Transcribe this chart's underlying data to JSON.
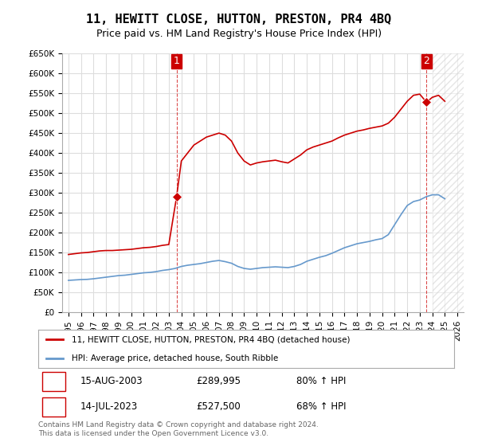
{
  "title": "11, HEWITT CLOSE, HUTTON, PRESTON, PR4 4BQ",
  "subtitle": "Price paid vs. HM Land Registry's House Price Index (HPI)",
  "xlabel": "",
  "ylabel": "",
  "ylim": [
    0,
    650000
  ],
  "xlim_left": 1995.0,
  "xlim_right": 2026.5,
  "yticks": [
    0,
    50000,
    100000,
    150000,
    200000,
    250000,
    300000,
    350000,
    400000,
    450000,
    500000,
    550000,
    600000,
    650000
  ],
  "ytick_labels": [
    "£0",
    "£50K",
    "£100K",
    "£150K",
    "£200K",
    "£250K",
    "£300K",
    "£350K",
    "£400K",
    "£450K",
    "£500K",
    "£550K",
    "£600K",
    "£650K"
  ],
  "xticks": [
    1995,
    1996,
    1997,
    1998,
    1999,
    2000,
    2001,
    2002,
    2003,
    2004,
    2005,
    2006,
    2007,
    2008,
    2009,
    2010,
    2011,
    2012,
    2013,
    2014,
    2015,
    2016,
    2017,
    2018,
    2019,
    2020,
    2021,
    2022,
    2023,
    2024,
    2025,
    2026
  ],
  "line_color_red": "#cc0000",
  "line_color_blue": "#6699cc",
  "marker_color_red": "#cc0000",
  "bg_color": "#ffffff",
  "grid_color": "#dddddd",
  "hatch_color": "#cccccc",
  "transaction1_year": 2003.62,
  "transaction1_price": 289995,
  "transaction2_year": 2023.54,
  "transaction2_price": 527500,
  "transaction1_label": "1",
  "transaction2_label": "2",
  "legend_line1": "11, HEWITT CLOSE, HUTTON, PRESTON, PR4 4BQ (detached house)",
  "legend_line2": "HPI: Average price, detached house, South Ribble",
  "table_row1": [
    "1",
    "15-AUG-2003",
    "£289,995",
    "80% ↑ HPI"
  ],
  "table_row2": [
    "2",
    "14-JUL-2023",
    "£527,500",
    "68% ↑ HPI"
  ],
  "footer": "Contains HM Land Registry data © Crown copyright and database right 2024.\nThis data is licensed under the Open Government Licence v3.0.",
  "red_x": [
    1995.0,
    1995.5,
    1996.0,
    1996.5,
    1997.0,
    1997.5,
    1998.0,
    1998.5,
    1999.0,
    1999.5,
    2000.0,
    2000.5,
    2001.0,
    2001.5,
    2002.0,
    2002.5,
    2003.0,
    2003.62,
    2004.0,
    2004.5,
    2005.0,
    2005.5,
    2006.0,
    2006.5,
    2007.0,
    2007.5,
    2008.0,
    2008.5,
    2009.0,
    2009.5,
    2010.0,
    2010.5,
    2011.0,
    2011.5,
    2012.0,
    2012.5,
    2013.0,
    2013.5,
    2014.0,
    2014.5,
    2015.0,
    2015.5,
    2016.0,
    2016.5,
    2017.0,
    2017.5,
    2018.0,
    2018.5,
    2019.0,
    2019.5,
    2020.0,
    2020.5,
    2021.0,
    2021.5,
    2022.0,
    2022.5,
    2023.0,
    2023.54,
    2024.0,
    2024.5,
    2025.0
  ],
  "red_y": [
    145000,
    147000,
    149000,
    150000,
    152000,
    154000,
    155000,
    155000,
    156000,
    157000,
    158000,
    160000,
    162000,
    163000,
    165000,
    168000,
    170000,
    289995,
    380000,
    400000,
    420000,
    430000,
    440000,
    445000,
    450000,
    445000,
    430000,
    400000,
    380000,
    370000,
    375000,
    378000,
    380000,
    382000,
    378000,
    375000,
    385000,
    395000,
    408000,
    415000,
    420000,
    425000,
    430000,
    438000,
    445000,
    450000,
    455000,
    458000,
    462000,
    465000,
    468000,
    475000,
    490000,
    510000,
    530000,
    545000,
    548000,
    527500,
    540000,
    545000,
    530000
  ],
  "blue_x": [
    1995.0,
    1995.5,
    1996.0,
    1996.5,
    1997.0,
    1997.5,
    1998.0,
    1998.5,
    1999.0,
    1999.5,
    2000.0,
    2000.5,
    2001.0,
    2001.5,
    2002.0,
    2002.5,
    2003.0,
    2003.5,
    2004.0,
    2004.5,
    2005.0,
    2005.5,
    2006.0,
    2006.5,
    2007.0,
    2007.5,
    2008.0,
    2008.5,
    2009.0,
    2009.5,
    2010.0,
    2010.5,
    2011.0,
    2011.5,
    2012.0,
    2012.5,
    2013.0,
    2013.5,
    2014.0,
    2014.5,
    2015.0,
    2015.5,
    2016.0,
    2016.5,
    2017.0,
    2017.5,
    2018.0,
    2018.5,
    2019.0,
    2019.5,
    2020.0,
    2020.5,
    2021.0,
    2021.5,
    2022.0,
    2022.5,
    2023.0,
    2023.5,
    2024.0,
    2024.5,
    2025.0
  ],
  "blue_y": [
    80000,
    81000,
    82000,
    82500,
    84000,
    86000,
    88000,
    90000,
    92000,
    93000,
    95000,
    97000,
    99000,
    100000,
    102000,
    105000,
    107000,
    110000,
    115000,
    118000,
    120000,
    122000,
    125000,
    128000,
    130000,
    127000,
    123000,
    115000,
    110000,
    108000,
    110000,
    112000,
    113000,
    114000,
    113000,
    112000,
    115000,
    120000,
    128000,
    133000,
    138000,
    142000,
    148000,
    155000,
    162000,
    167000,
    172000,
    175000,
    178000,
    182000,
    185000,
    195000,
    220000,
    245000,
    268000,
    278000,
    282000,
    290000,
    295000,
    295000,
    285000
  ]
}
